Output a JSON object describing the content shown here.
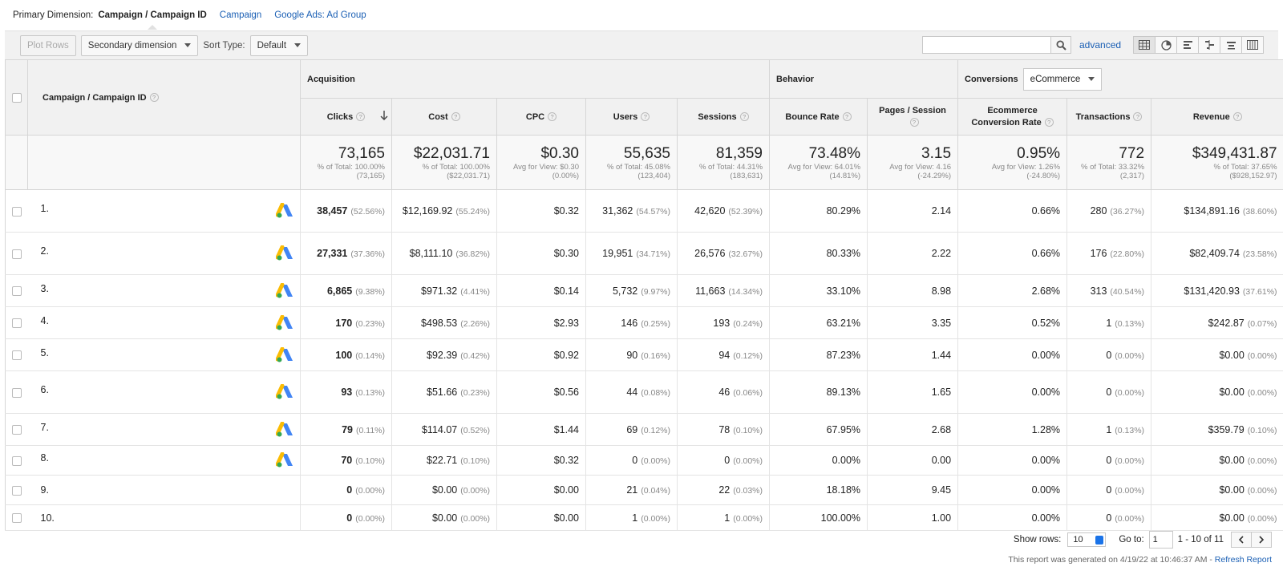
{
  "dimension_bar": {
    "label": "Primary Dimension:",
    "active": "Campaign / Campaign ID",
    "links": [
      "Campaign",
      "Google Ads: Ad Group"
    ]
  },
  "toolbar": {
    "plot_rows": "Plot Rows",
    "secondary_dimension": "Secondary dimension",
    "sort_type_label": "Sort Type:",
    "sort_type_value": "Default",
    "search_value": "",
    "advanced": "advanced"
  },
  "table": {
    "dimension_header": "Campaign / Campaign ID",
    "groups": {
      "acquisition": "Acquisition",
      "behavior": "Behavior",
      "conversions": "Conversions",
      "conversions_select": "eCommerce"
    },
    "columns": {
      "clicks": "Clicks",
      "cost": "Cost",
      "cpc": "CPC",
      "users": "Users",
      "sessions": "Sessions",
      "bounce_rate": "Bounce Rate",
      "pages_session": "Pages / Session",
      "ecr": "Ecommerce Conversion Rate",
      "transactions": "Transactions",
      "revenue": "Revenue"
    },
    "totals": {
      "clicks": {
        "value": "73,165",
        "sub1": "% of Total: 100.00%",
        "sub2": "(73,165)"
      },
      "cost": {
        "value": "$22,031.71",
        "sub1": "% of Total: 100.00%",
        "sub2": "($22,031.71)"
      },
      "cpc": {
        "value": "$0.30",
        "sub1": "Avg for View: $0.30",
        "sub2": "(0.00%)"
      },
      "users": {
        "value": "55,635",
        "sub1": "% of Total: 45.08%",
        "sub2": "(123,404)"
      },
      "sessions": {
        "value": "81,359",
        "sub1": "% of Total: 44.31%",
        "sub2": "(183,631)"
      },
      "bounce_rate": {
        "value": "73.48%",
        "sub1": "Avg for View: 64.01%",
        "sub2": "(14.81%)"
      },
      "pages_session": {
        "value": "3.15",
        "sub1": "Avg for View: 4.16",
        "sub2": "(-24.29%)"
      },
      "ecr": {
        "value": "0.95%",
        "sub1": "Avg for View: 1.26%",
        "sub2": "(-24.80%)"
      },
      "transactions": {
        "value": "772",
        "sub1": "% of Total: 33.32%",
        "sub2": "(2,317)"
      },
      "revenue": {
        "value": "$349,431.87",
        "sub1": "% of Total: 37.65%",
        "sub2": "($928,152.97)"
      }
    },
    "rows": [
      {
        "idx": "1.",
        "clicks": "38,457",
        "clicks_pct": "(52.56%)",
        "cost": "$12,169.92",
        "cost_pct": "(55.24%)",
        "cpc": "$0.32",
        "users": "31,362",
        "users_pct": "(54.57%)",
        "sessions": "42,620",
        "sessions_pct": "(52.39%)",
        "bounce": "80.29%",
        "pages": "2.14",
        "ecr": "0.66%",
        "trans": "280",
        "trans_pct": "(36.27%)",
        "rev": "$134,891.16",
        "rev_pct": "(38.60%)",
        "ads_icon": true
      },
      {
        "idx": "2.",
        "clicks": "27,331",
        "clicks_pct": "(37.36%)",
        "cost": "$8,111.10",
        "cost_pct": "(36.82%)",
        "cpc": "$0.30",
        "users": "19,951",
        "users_pct": "(34.71%)",
        "sessions": "26,576",
        "sessions_pct": "(32.67%)",
        "bounce": "80.33%",
        "pages": "2.22",
        "ecr": "0.66%",
        "trans": "176",
        "trans_pct": "(22.80%)",
        "rev": "$82,409.74",
        "rev_pct": "(23.58%)",
        "ads_icon": true
      },
      {
        "idx": "3.",
        "clicks": "6,865",
        "clicks_pct": "(9.38%)",
        "cost": "$971.32",
        "cost_pct": "(4.41%)",
        "cpc": "$0.14",
        "users": "5,732",
        "users_pct": "(9.97%)",
        "sessions": "11,663",
        "sessions_pct": "(14.34%)",
        "bounce": "33.10%",
        "pages": "8.98",
        "ecr": "2.68%",
        "trans": "313",
        "trans_pct": "(40.54%)",
        "rev": "$131,420.93",
        "rev_pct": "(37.61%)",
        "ads_icon": true
      },
      {
        "idx": "4.",
        "clicks": "170",
        "clicks_pct": "(0.23%)",
        "cost": "$498.53",
        "cost_pct": "(2.26%)",
        "cpc": "$2.93",
        "users": "146",
        "users_pct": "(0.25%)",
        "sessions": "193",
        "sessions_pct": "(0.24%)",
        "bounce": "63.21%",
        "pages": "3.35",
        "ecr": "0.52%",
        "trans": "1",
        "trans_pct": "(0.13%)",
        "rev": "$242.87",
        "rev_pct": "(0.07%)",
        "ads_icon": true
      },
      {
        "idx": "5.",
        "clicks": "100",
        "clicks_pct": "(0.14%)",
        "cost": "$92.39",
        "cost_pct": "(0.42%)",
        "cpc": "$0.92",
        "users": "90",
        "users_pct": "(0.16%)",
        "sessions": "94",
        "sessions_pct": "(0.12%)",
        "bounce": "87.23%",
        "pages": "1.44",
        "ecr": "0.00%",
        "trans": "0",
        "trans_pct": "(0.00%)",
        "rev": "$0.00",
        "rev_pct": "(0.00%)",
        "ads_icon": true
      },
      {
        "idx": "6.",
        "clicks": "93",
        "clicks_pct": "(0.13%)",
        "cost": "$51.66",
        "cost_pct": "(0.23%)",
        "cpc": "$0.56",
        "users": "44",
        "users_pct": "(0.08%)",
        "sessions": "46",
        "sessions_pct": "(0.06%)",
        "bounce": "89.13%",
        "pages": "1.65",
        "ecr": "0.00%",
        "trans": "0",
        "trans_pct": "(0.00%)",
        "rev": "$0.00",
        "rev_pct": "(0.00%)",
        "ads_icon": true
      },
      {
        "idx": "7.",
        "clicks": "79",
        "clicks_pct": "(0.11%)",
        "cost": "$114.07",
        "cost_pct": "(0.52%)",
        "cpc": "$1.44",
        "users": "69",
        "users_pct": "(0.12%)",
        "sessions": "78",
        "sessions_pct": "(0.10%)",
        "bounce": "67.95%",
        "pages": "2.68",
        "ecr": "1.28%",
        "trans": "1",
        "trans_pct": "(0.13%)",
        "rev": "$359.79",
        "rev_pct": "(0.10%)",
        "ads_icon": true
      },
      {
        "idx": "8.",
        "clicks": "70",
        "clicks_pct": "(0.10%)",
        "cost": "$22.71",
        "cost_pct": "(0.10%)",
        "cpc": "$0.32",
        "users": "0",
        "users_pct": "(0.00%)",
        "sessions": "0",
        "sessions_pct": "(0.00%)",
        "bounce": "0.00%",
        "pages": "0.00",
        "ecr": "0.00%",
        "trans": "0",
        "trans_pct": "(0.00%)",
        "rev": "$0.00",
        "rev_pct": "(0.00%)",
        "ads_icon": true
      },
      {
        "idx": "9.",
        "clicks": "0",
        "clicks_pct": "(0.00%)",
        "cost": "$0.00",
        "cost_pct": "(0.00%)",
        "cpc": "$0.00",
        "users": "21",
        "users_pct": "(0.04%)",
        "sessions": "22",
        "sessions_pct": "(0.03%)",
        "bounce": "18.18%",
        "pages": "9.45",
        "ecr": "0.00%",
        "trans": "0",
        "trans_pct": "(0.00%)",
        "rev": "$0.00",
        "rev_pct": "(0.00%)",
        "ads_icon": false
      },
      {
        "idx": "10.",
        "clicks": "0",
        "clicks_pct": "(0.00%)",
        "cost": "$0.00",
        "cost_pct": "(0.00%)",
        "cpc": "$0.00",
        "users": "1",
        "users_pct": "(0.00%)",
        "sessions": "1",
        "sessions_pct": "(0.00%)",
        "bounce": "100.00%",
        "pages": "1.00",
        "ecr": "0.00%",
        "trans": "0",
        "trans_pct": "(0.00%)",
        "rev": "$0.00",
        "rev_pct": "(0.00%)",
        "ads_icon": false
      }
    ]
  },
  "footer": {
    "show_rows_label": "Show rows:",
    "show_rows_value": "10",
    "goto_label": "Go to:",
    "goto_value": "1",
    "range": "1 - 10 of 11",
    "generated": "This report was generated on 4/19/22 at 10:46:37 AM -",
    "refresh": "Refresh Report"
  },
  "colors": {
    "link": "#1a5fb4",
    "header_bg": "#f1f1f1"
  },
  "icons": [
    "search-icon",
    "google-ads-icon",
    "sort-down-arrow-icon",
    "help-icon",
    "table-view-icon",
    "pie-view-icon",
    "performance-view-icon",
    "comparison-view-icon",
    "term-cloud-view-icon",
    "pivot-view-icon"
  ]
}
